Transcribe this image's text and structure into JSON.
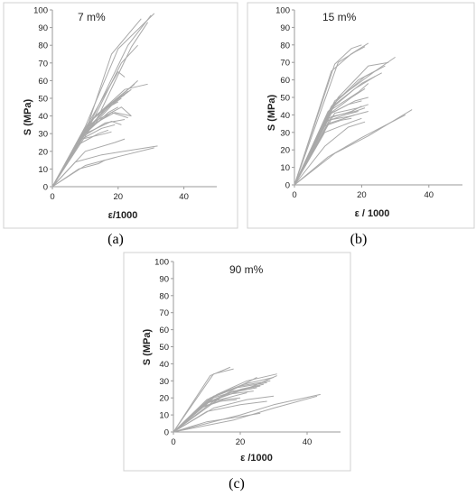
{
  "chart_data": [
    {
      "id": "a",
      "type": "line",
      "caption": "(a)",
      "annotation": "7 m%",
      "xlabel": "ε/1000",
      "ylabel": "S (MPa)",
      "xlim": [
        0,
        50
      ],
      "ylim": [
        0,
        100
      ],
      "xticks": [
        "0",
        "20",
        "40"
      ],
      "yticks": [
        "0",
        "10",
        "20",
        "30",
        "40",
        "50",
        "60",
        "70",
        "80",
        "90",
        "100"
      ],
      "grid": false,
      "series": [
        {
          "x": [
            0,
            10,
            20,
            31
          ],
          "y": [
            0,
            34,
            78,
            98
          ]
        },
        {
          "x": [
            0,
            12,
            23,
            30
          ],
          "y": [
            0,
            38,
            80,
            97
          ]
        },
        {
          "x": [
            0,
            14,
            24,
            29
          ],
          "y": [
            0,
            40,
            79,
            93
          ]
        },
        {
          "x": [
            0,
            11,
            18,
            27
          ],
          "y": [
            0,
            36,
            75,
            95
          ]
        },
        {
          "x": [
            0,
            13,
            21,
            26
          ],
          "y": [
            0,
            40,
            70,
            80
          ]
        },
        {
          "x": [
            0,
            10,
            20,
            22
          ],
          "y": [
            0,
            33,
            65,
            62
          ]
        },
        {
          "x": [
            0,
            12,
            22,
            29
          ],
          "y": [
            0,
            38,
            55,
            58
          ]
        },
        {
          "x": [
            0,
            13,
            23,
            26
          ],
          "y": [
            0,
            40,
            55,
            60
          ]
        },
        {
          "x": [
            0,
            11,
            21,
            25
          ],
          "y": [
            0,
            36,
            52,
            58
          ]
        },
        {
          "x": [
            0,
            10,
            19,
            24
          ],
          "y": [
            0,
            30,
            48,
            55
          ]
        },
        {
          "x": [
            0,
            12,
            20,
            23
          ],
          "y": [
            0,
            38,
            50,
            54
          ]
        },
        {
          "x": [
            0,
            10,
            17,
            21
          ],
          "y": [
            0,
            32,
            45,
            50
          ]
        },
        {
          "x": [
            0,
            11,
            18,
            22
          ],
          "y": [
            0,
            33,
            47,
            52
          ]
        },
        {
          "x": [
            0,
            9,
            16,
            20
          ],
          "y": [
            0,
            28,
            44,
            48
          ]
        },
        {
          "x": [
            0,
            10,
            17,
            20
          ],
          "y": [
            0,
            30,
            42,
            45
          ]
        },
        {
          "x": [
            0,
            11,
            19,
            24
          ],
          "y": [
            0,
            34,
            42,
            40
          ]
        },
        {
          "x": [
            0,
            9,
            16,
            22
          ],
          "y": [
            0,
            28,
            36,
            38
          ]
        },
        {
          "x": [
            0,
            10,
            18,
            21
          ],
          "y": [
            0,
            30,
            37,
            35
          ]
        },
        {
          "x": [
            0,
            8,
            15,
            19
          ],
          "y": [
            0,
            26,
            33,
            35
          ]
        },
        {
          "x": [
            0,
            9,
            16,
            18
          ],
          "y": [
            0,
            27,
            30,
            31
          ]
        },
        {
          "x": [
            0,
            8,
            14,
            17
          ],
          "y": [
            0,
            24,
            30,
            32
          ]
        },
        {
          "x": [
            0,
            11,
            21,
            24
          ],
          "y": [
            0,
            35,
            45,
            40
          ]
        },
        {
          "x": [
            0,
            9,
            18,
            23
          ],
          "y": [
            0,
            30,
            42,
            39
          ]
        },
        {
          "x": [
            0,
            10,
            19,
            22
          ],
          "y": [
            0,
            20,
            25,
            27
          ]
        },
        {
          "x": [
            0,
            7,
            15,
            32
          ],
          "y": [
            0,
            14,
            18,
            23
          ]
        },
        {
          "x": [
            0,
            10,
            20,
            31
          ],
          "y": [
            0,
            12,
            17,
            22
          ]
        },
        {
          "x": [
            0,
            8,
            14,
            16
          ],
          "y": [
            0,
            10,
            13,
            15
          ]
        }
      ]
    },
    {
      "id": "b",
      "type": "line",
      "caption": "(b)",
      "annotation": "15 m%",
      "xlabel": "ε / 1000",
      "ylabel": "S (MPa)",
      "xlim": [
        0,
        50
      ],
      "ylim": [
        0,
        100
      ],
      "xticks": [
        "0",
        "20",
        "40"
      ],
      "yticks": [
        "0",
        "10",
        "20",
        "30",
        "40",
        "50",
        "60",
        "70",
        "80",
        "90",
        "100"
      ],
      "grid": false,
      "series": [
        {
          "x": [
            0,
            12,
            17,
            20
          ],
          "y": [
            0,
            69,
            78,
            80
          ]
        },
        {
          "x": [
            0,
            11,
            17,
            22
          ],
          "y": [
            0,
            65,
            75,
            81
          ]
        },
        {
          "x": [
            0,
            13,
            18,
            21
          ],
          "y": [
            0,
            70,
            76,
            79
          ]
        },
        {
          "x": [
            0,
            12,
            24,
            30
          ],
          "y": [
            0,
            48,
            65,
            73
          ]
        },
        {
          "x": [
            0,
            13,
            22,
            28
          ],
          "y": [
            0,
            50,
            68,
            70
          ]
        },
        {
          "x": [
            0,
            12,
            21,
            27
          ],
          "y": [
            0,
            47,
            62,
            68
          ]
        },
        {
          "x": [
            0,
            11,
            19,
            25
          ],
          "y": [
            0,
            45,
            60,
            66
          ]
        },
        {
          "x": [
            0,
            12,
            20,
            26
          ],
          "y": [
            0,
            46,
            58,
            64
          ]
        },
        {
          "x": [
            0,
            10,
            18,
            24
          ],
          "y": [
            0,
            42,
            55,
            62
          ]
        },
        {
          "x": [
            0,
            11,
            19,
            22
          ],
          "y": [
            0,
            43,
            53,
            58
          ]
        },
        {
          "x": [
            0,
            10,
            17,
            21
          ],
          "y": [
            0,
            40,
            50,
            55
          ]
        },
        {
          "x": [
            0,
            11,
            18,
            22
          ],
          "y": [
            0,
            41,
            48,
            50
          ]
        },
        {
          "x": [
            0,
            10,
            16,
            20
          ],
          "y": [
            0,
            40,
            46,
            48
          ]
        },
        {
          "x": [
            0,
            12,
            19,
            22
          ],
          "y": [
            0,
            41,
            44,
            46
          ]
        },
        {
          "x": [
            0,
            10,
            17,
            20
          ],
          "y": [
            0,
            38,
            42,
            45
          ]
        },
        {
          "x": [
            0,
            11,
            18,
            21
          ],
          "y": [
            0,
            39,
            42,
            44
          ]
        },
        {
          "x": [
            0,
            9,
            15,
            19
          ],
          "y": [
            0,
            36,
            40,
            42
          ]
        },
        {
          "x": [
            0,
            10,
            16,
            18
          ],
          "y": [
            0,
            37,
            39,
            40
          ]
        },
        {
          "x": [
            0,
            8,
            14,
            17
          ],
          "y": [
            0,
            33,
            37,
            38
          ]
        },
        {
          "x": [
            0,
            10,
            18,
            22
          ],
          "y": [
            0,
            35,
            40,
            42
          ]
        },
        {
          "x": [
            0,
            9,
            17,
            20
          ],
          "y": [
            0,
            30,
            36,
            38
          ]
        },
        {
          "x": [
            0,
            12,
            22,
            35
          ],
          "y": [
            0,
            18,
            28,
            43
          ]
        },
        {
          "x": [
            0,
            10,
            20,
            33
          ],
          "y": [
            0,
            16,
            27,
            40
          ]
        },
        {
          "x": [
            0,
            9,
            16,
            21
          ],
          "y": [
            0,
            22,
            33,
            36
          ]
        }
      ]
    },
    {
      "id": "c",
      "type": "line",
      "caption": "(c)",
      "annotation": "90 m%",
      "xlabel": "ε /1000",
      "ylabel": "S (MPa)",
      "xlim": [
        0,
        50
      ],
      "ylim": [
        0,
        100
      ],
      "xticks": [
        "0",
        "20",
        "40"
      ],
      "yticks": [
        "0",
        "10",
        "20",
        "30",
        "40",
        "50",
        "60",
        "70",
        "80",
        "90",
        "100"
      ],
      "grid": false,
      "series": [
        {
          "x": [
            0,
            11,
            17
          ],
          "y": [
            0,
            33,
            38
          ]
        },
        {
          "x": [
            0,
            12,
            18
          ],
          "y": [
            0,
            34,
            37
          ]
        },
        {
          "x": [
            0,
            13,
            22,
            31
          ],
          "y": [
            0,
            22,
            30,
            34
          ]
        },
        {
          "x": [
            0,
            12,
            21,
            30
          ],
          "y": [
            0,
            21,
            28,
            32
          ]
        },
        {
          "x": [
            0,
            11,
            20,
            29
          ],
          "y": [
            0,
            20,
            27,
            30
          ]
        },
        {
          "x": [
            0,
            10,
            19,
            28
          ],
          "y": [
            0,
            19,
            26,
            29
          ]
        },
        {
          "x": [
            0,
            12,
            20,
            27
          ],
          "y": [
            0,
            20,
            25,
            28
          ]
        },
        {
          "x": [
            0,
            11,
            18,
            26
          ],
          "y": [
            0,
            18,
            24,
            27
          ]
        },
        {
          "x": [
            0,
            10,
            17,
            25
          ],
          "y": [
            0,
            17,
            23,
            26
          ]
        },
        {
          "x": [
            0,
            9,
            16,
            24
          ],
          "y": [
            0,
            16,
            22,
            24
          ]
        },
        {
          "x": [
            0,
            10,
            18,
            22
          ],
          "y": [
            0,
            17,
            21,
            23
          ]
        },
        {
          "x": [
            0,
            9,
            15,
            20
          ],
          "y": [
            0,
            15,
            19,
            20
          ]
        },
        {
          "x": [
            0,
            8,
            14,
            19
          ],
          "y": [
            0,
            14,
            18,
            19
          ]
        },
        {
          "x": [
            0,
            12,
            22,
            30
          ],
          "y": [
            0,
            14,
            19,
            21
          ]
        },
        {
          "x": [
            0,
            10,
            20,
            28
          ],
          "y": [
            0,
            12,
            16,
            18
          ]
        },
        {
          "x": [
            0,
            20,
            30,
            44
          ],
          "y": [
            0,
            10,
            16,
            22
          ]
        },
        {
          "x": [
            0,
            18,
            30,
            43
          ],
          "y": [
            0,
            7,
            14,
            21
          ]
        },
        {
          "x": [
            0,
            10,
            20,
            26
          ],
          "y": [
            0,
            6,
            9,
            11
          ]
        },
        {
          "x": [
            0,
            12,
            18,
            25
          ],
          "y": [
            0,
            18,
            25,
            32
          ]
        },
        {
          "x": [
            0,
            14,
            24,
            31
          ],
          "y": [
            0,
            20,
            27,
            33
          ]
        }
      ]
    }
  ]
}
